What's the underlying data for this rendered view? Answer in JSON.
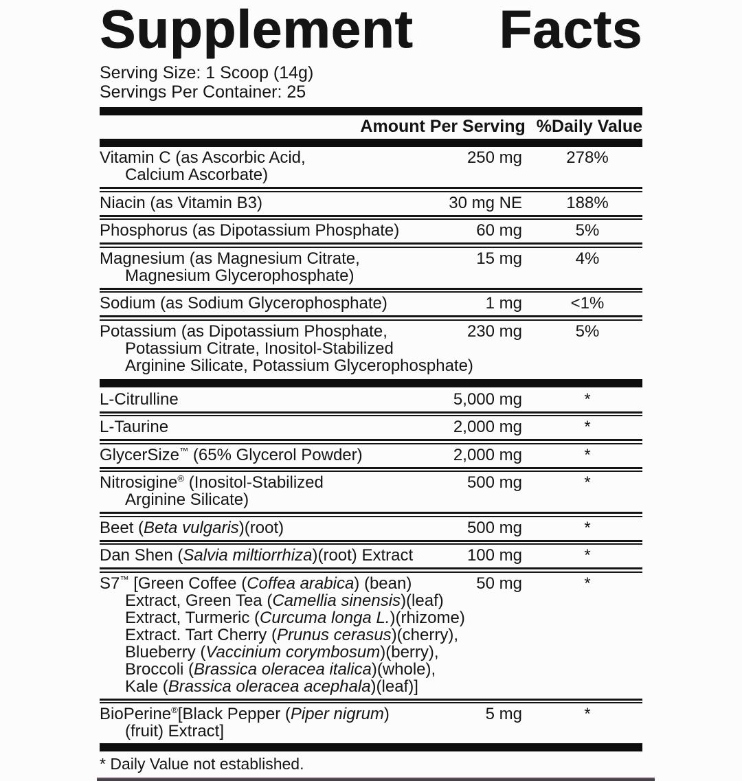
{
  "label": {
    "title": {
      "word1": "Supplement",
      "word2": "Facts"
    },
    "serving": {
      "size": "Serving Size: 1 Scoop (14g)",
      "per_container": "Servings Per Container: 25"
    },
    "columns": {
      "amount": "Amount Per Serving",
      "dv": "%Daily Value"
    },
    "rows": [
      {
        "sep": "none",
        "lines": [
          [
            {
              "t": "Vitamin C (as Ascorbic Acid,"
            }
          ],
          [
            {
              "t": "Calcium Ascorbate)"
            }
          ]
        ],
        "amount": "250 mg",
        "dv": "278%"
      },
      {
        "sep": "thin",
        "lines": [
          [
            {
              "t": "Niacin (as Vitamin B3)"
            }
          ]
        ],
        "amount": "30 mg NE",
        "dv": "188%"
      },
      {
        "sep": "thin",
        "lines": [
          [
            {
              "t": "Phosphorus (as Dipotassium Phosphate)"
            }
          ]
        ],
        "amount": "60 mg",
        "dv": "5%"
      },
      {
        "sep": "thin",
        "lines": [
          [
            {
              "t": "Magnesium (as Magnesium Citrate,"
            }
          ],
          [
            {
              "t": "Magnesium Glycerophosphate)"
            }
          ]
        ],
        "amount": "15 mg",
        "dv": "4%"
      },
      {
        "sep": "thin",
        "lines": [
          [
            {
              "t": "Sodium (as Sodium Glycerophosphate)"
            }
          ]
        ],
        "amount": "1 mg",
        "dv": "<1%"
      },
      {
        "sep": "thin",
        "lines": [
          [
            {
              "t": "Potassium (as Dipotassium Phosphate,"
            }
          ],
          [
            {
              "t": "Potassium Citrate, Inositol-Stabilized"
            }
          ],
          [
            {
              "t": "Arginine Silicate, Potassium Glycerophosphate)"
            }
          ]
        ],
        "amount": "230 mg",
        "dv": "5%"
      },
      {
        "sep": "thick",
        "lines": [
          [
            {
              "t": "L-Citrulline"
            }
          ]
        ],
        "amount": "5,000 mg",
        "dv": "*"
      },
      {
        "sep": "thin",
        "lines": [
          [
            {
              "t": "L-Taurine"
            }
          ]
        ],
        "amount": "2,000 mg",
        "dv": "*"
      },
      {
        "sep": "thin",
        "lines": [
          [
            {
              "t": "GlycerSize"
            },
            {
              "t": "™",
              "sup": true
            },
            {
              "t": " (65% Glycerol Powder)"
            }
          ]
        ],
        "amount": "2,000 mg",
        "dv": "*"
      },
      {
        "sep": "thin",
        "lines": [
          [
            {
              "t": "Nitrosigine"
            },
            {
              "t": "®",
              "sup": true
            },
            {
              "t": " (Inositol-Stabilized"
            }
          ],
          [
            {
              "t": "Arginine Silicate)"
            }
          ]
        ],
        "amount": "500 mg",
        "dv": "*"
      },
      {
        "sep": "thin",
        "lines": [
          [
            {
              "t": "Beet ("
            },
            {
              "t": "Beta vulgaris",
              "i": true
            },
            {
              "t": ")(root)"
            }
          ]
        ],
        "amount": "500 mg",
        "dv": "*"
      },
      {
        "sep": "thin",
        "lines": [
          [
            {
              "t": "Dan Shen ("
            },
            {
              "t": "Salvia miltiorrhiza",
              "i": true
            },
            {
              "t": ")(root) Extract"
            }
          ]
        ],
        "amount": "100 mg",
        "dv": "*"
      },
      {
        "sep": "thin",
        "lines": [
          [
            {
              "t": "S7"
            },
            {
              "t": "™",
              "sup": true
            },
            {
              "t": " [Green Coffee ("
            },
            {
              "t": "Coffea arabica",
              "i": true
            },
            {
              "t": ") (bean)"
            }
          ],
          [
            {
              "t": "Extract, Green Tea ("
            },
            {
              "t": "Camellia sinensis",
              "i": true
            },
            {
              "t": ")(leaf)"
            }
          ],
          [
            {
              "t": "Extract, Turmeric ("
            },
            {
              "t": "Curcuma longa L.",
              "i": true
            },
            {
              "t": ")(rhizome)"
            }
          ],
          [
            {
              "t": "Extract. Tart Cherry ("
            },
            {
              "t": "Prunus cerasus",
              "i": true
            },
            {
              "t": ")(cherry),"
            }
          ],
          [
            {
              "t": "Blueberry ("
            },
            {
              "t": "Vaccinium corymbosum",
              "i": true
            },
            {
              "t": ")(berry),"
            }
          ],
          [
            {
              "t": "Broccoli ("
            },
            {
              "t": "Brassica oleracea italica",
              "i": true
            },
            {
              "t": ")(whole),"
            }
          ],
          [
            {
              "t": "Kale ("
            },
            {
              "t": "Brassica oleracea acephala",
              "i": true
            },
            {
              "t": ")(leaf)]"
            }
          ]
        ],
        "amount": "50 mg",
        "dv": "*"
      },
      {
        "sep": "thin",
        "lines": [
          [
            {
              "t": "BioPerine"
            },
            {
              "t": "®",
              "sup": true
            },
            {
              "t": "[Black Pepper ("
            },
            {
              "t": "Piper nigrum",
              "i": true
            },
            {
              "t": ")"
            }
          ],
          [
            {
              "t": "(fruit) Extract]"
            }
          ]
        ],
        "amount": "5 mg",
        "dv": "*"
      }
    ],
    "footnote": "* Daily Value not established.",
    "colors": {
      "ink": "#141414",
      "bar": "#0d0d0d",
      "background": "#fcfcfc",
      "bottom_edge": "#47424a",
      "bottom_edge_tint": "#c9b4c4"
    }
  }
}
